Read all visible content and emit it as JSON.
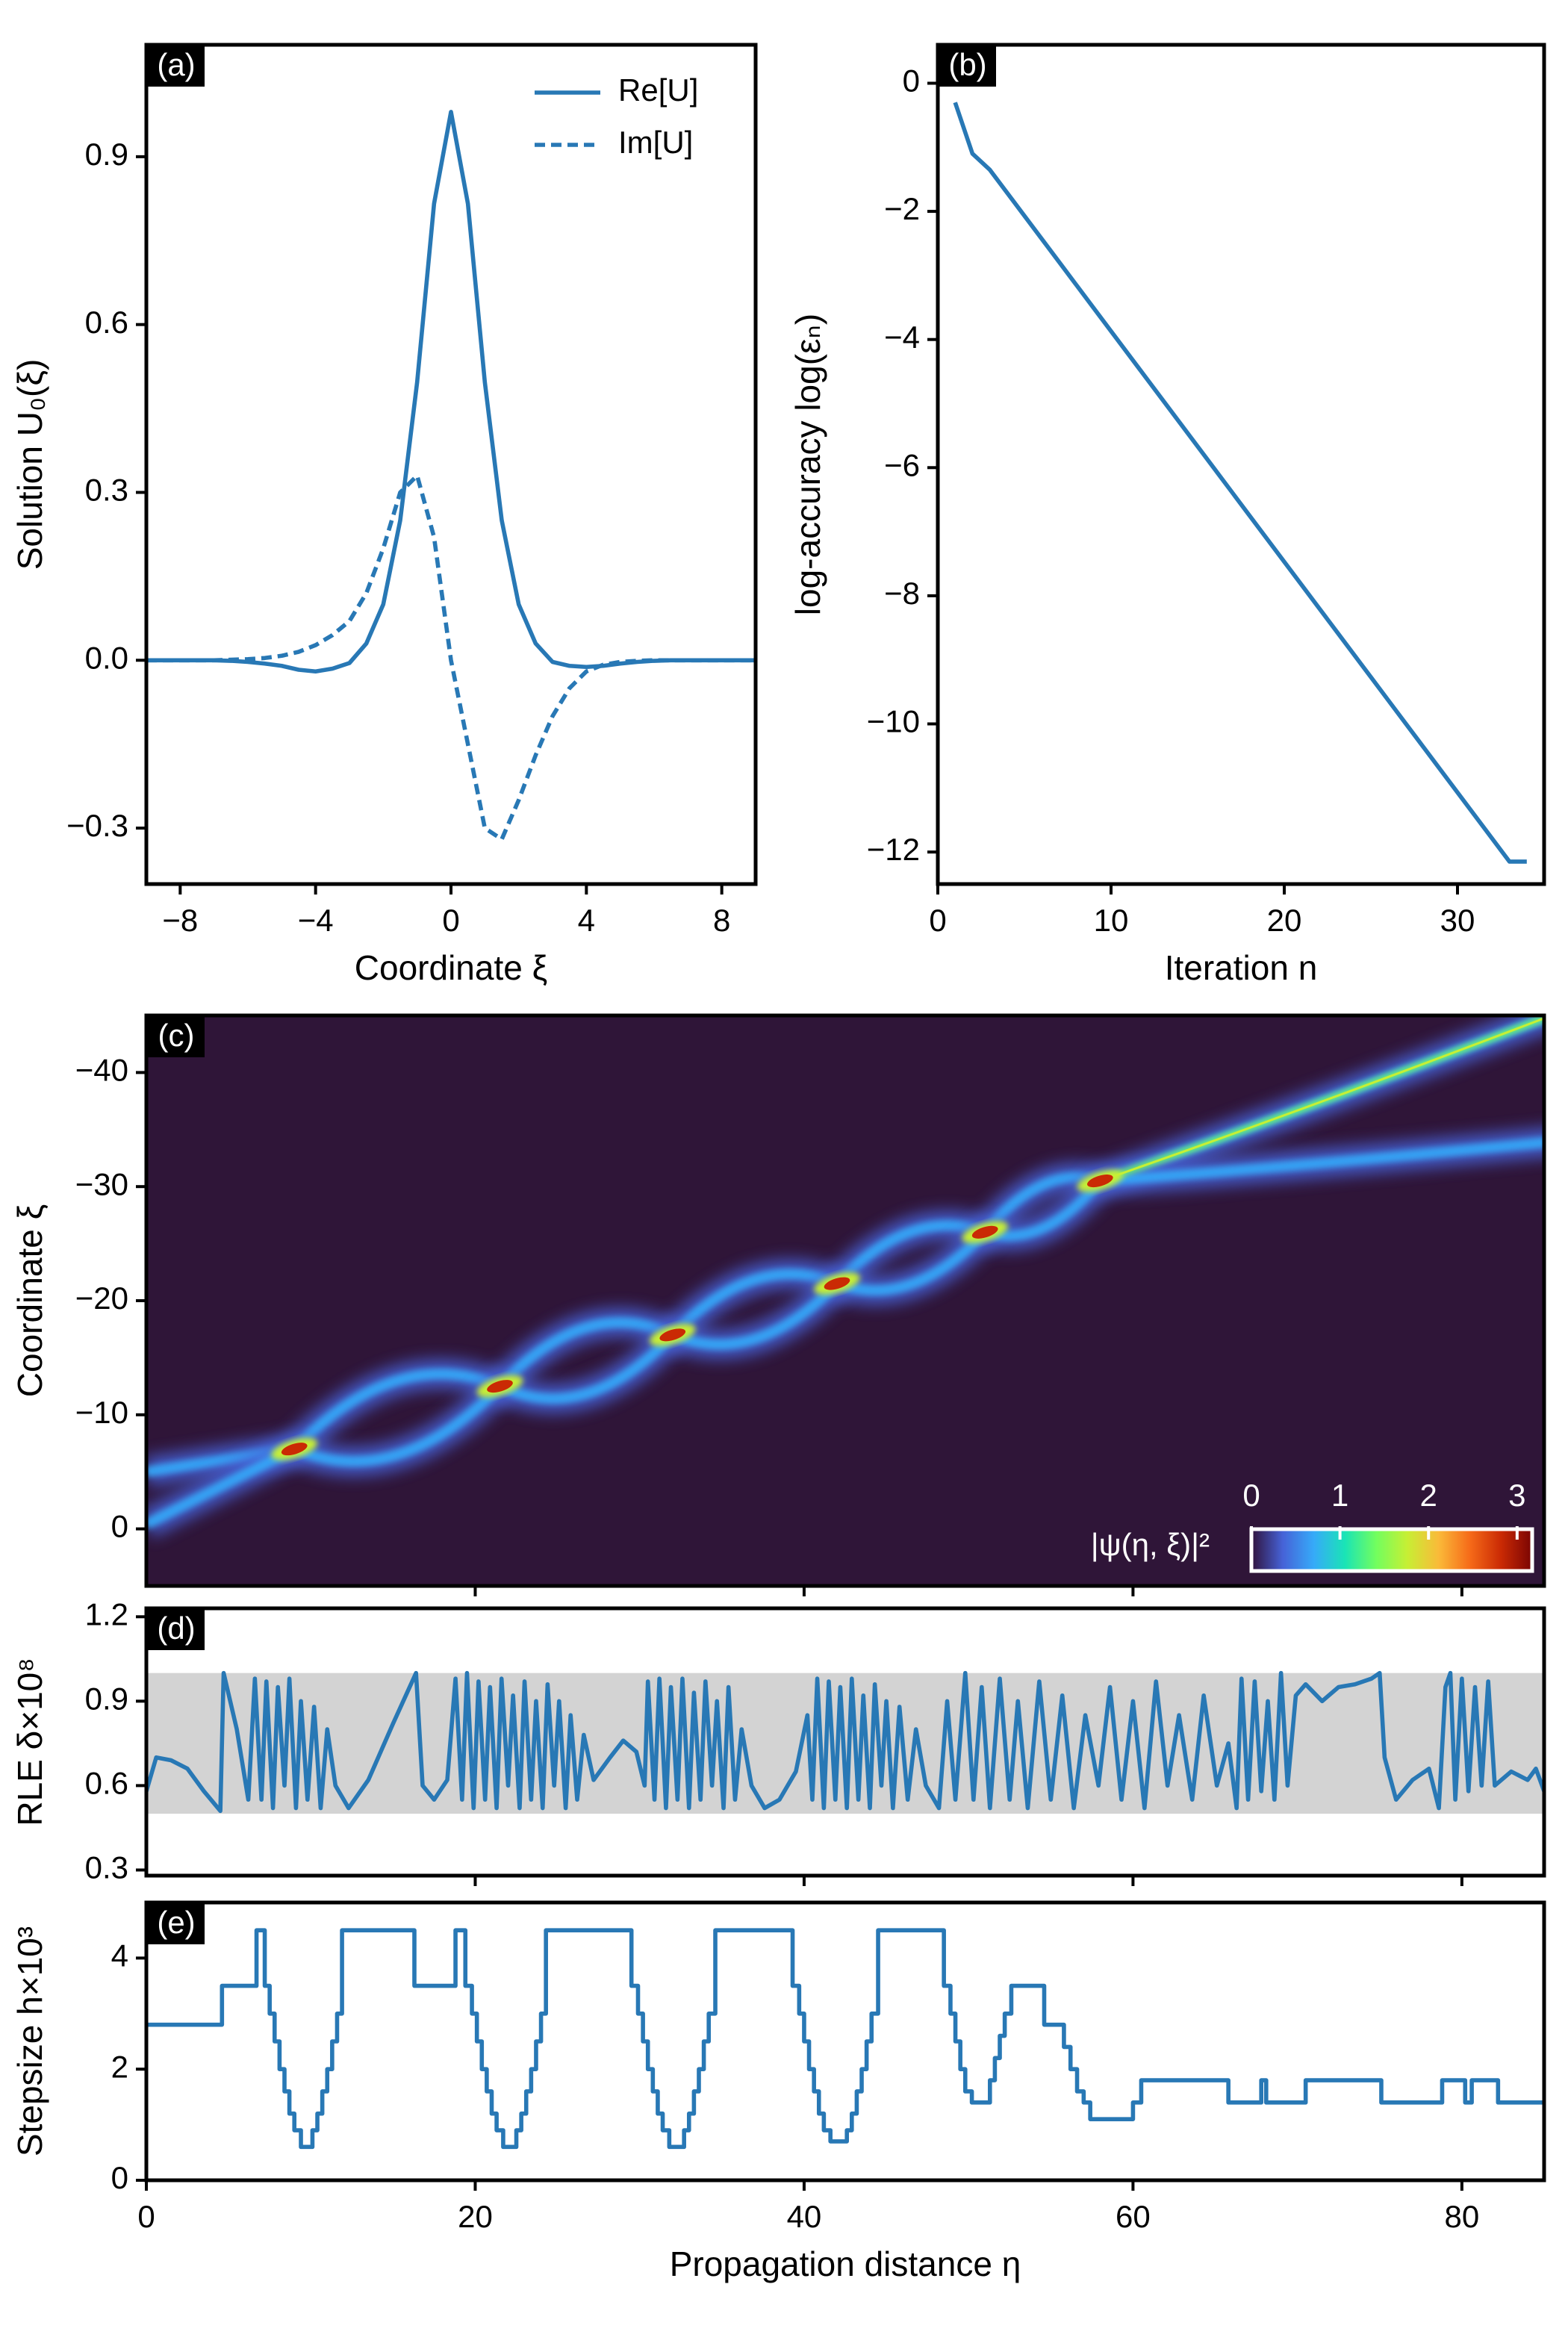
{
  "chart_data": [
    {
      "type": "line",
      "panel_label": "(a)",
      "xlabel": "Coordinate ξ",
      "ylabel": "Solution U₀(ξ)",
      "xlim": [
        -9,
        9
      ],
      "ylim": [
        -0.4,
        1.1
      ],
      "xticks": [
        {
          "value": -8,
          "label": "−8"
        },
        {
          "value": -4,
          "label": "−4"
        },
        0,
        4,
        8
      ],
      "yticks": [
        {
          "value": -0.3,
          "label": "−0.3"
        },
        {
          "value": 0,
          "label": "0.0"
        },
        0.3,
        0.6,
        0.9
      ],
      "legend": "upper right",
      "x": [
        -9,
        -8.5,
        -8,
        -7.5,
        -7,
        -6.5,
        -6,
        -5.5,
        -5,
        -4.5,
        -4,
        -3.5,
        -3,
        -2.5,
        -2,
        -1.5,
        -1,
        -0.5,
        0,
        0.5,
        1,
        1.5,
        2,
        2.5,
        3,
        3.5,
        4,
        4.5,
        5,
        5.5,
        6,
        6.5,
        7,
        7.5,
        8,
        8.5,
        9
      ],
      "series": [
        {
          "name": "Re[U]",
          "color": "#2878b5",
          "dash": "solid",
          "values": [
            0,
            0,
            0,
            0,
            0,
            -0.001,
            -0.003,
            -0.006,
            -0.01,
            -0.017,
            -0.02,
            -0.015,
            -0.005,
            0.03,
            0.1,
            0.25,
            0.497,
            0.816,
            0.98,
            0.816,
            0.497,
            0.25,
            0.1,
            0.03,
            -0.003,
            -0.01,
            -0.012,
            -0.01,
            -0.006,
            -0.003,
            -0.001,
            0,
            0,
            0,
            0,
            0,
            0
          ]
        },
        {
          "name": "Im[U]",
          "color": "#2878b5",
          "dash": "dashed",
          "values": [
            0,
            0,
            0,
            0,
            0,
            0.001,
            0.002,
            0.004,
            0.008,
            0.015,
            0.027,
            0.045,
            0.07,
            0.12,
            0.2,
            0.3,
            0.33,
            0.22,
            0,
            -0.15,
            -0.3,
            -0.32,
            -0.25,
            -0.17,
            -0.1,
            -0.05,
            -0.02,
            -0.008,
            -0.003,
            -0.001,
            0,
            0,
            0,
            0,
            0,
            0,
            0
          ]
        }
      ]
    },
    {
      "type": "line",
      "panel_label": "(b)",
      "xlabel": "Iteration n",
      "ylabel": "log-accuracy log(εₙ)",
      "xlim": [
        0,
        35
      ],
      "ylim": [
        -12.5,
        0.6
      ],
      "xticks": [
        0,
        10,
        20,
        30
      ],
      "yticks": [
        {
          "value": -12,
          "label": "−12"
        },
        {
          "value": -10,
          "label": "−10"
        },
        {
          "value": -8,
          "label": "−8"
        },
        {
          "value": -6,
          "label": "−6"
        },
        {
          "value": -4,
          "label": "−4"
        },
        {
          "value": -2,
          "label": "−2"
        },
        0
      ],
      "x": [
        1,
        2,
        3,
        4,
        5,
        6,
        7,
        8,
        9,
        10,
        11,
        12,
        13,
        14,
        15,
        16,
        17,
        18,
        19,
        20,
        21,
        22,
        23,
        24,
        25,
        26,
        27,
        28,
        29,
        30,
        31,
        32,
        33,
        34
      ],
      "series": [
        {
          "color": "#2878b5",
          "dash": "solid",
          "values": [
            -0.3,
            -1.1,
            -1.35,
            -1.71,
            -2.07,
            -2.43,
            -2.79,
            -3.15,
            -3.51,
            -3.87,
            -4.23,
            -4.59,
            -4.95,
            -5.31,
            -5.67,
            -6.03,
            -6.39,
            -6.75,
            -7.11,
            -7.47,
            -7.83,
            -8.19,
            -8.55,
            -8.91,
            -9.27,
            -9.63,
            -9.99,
            -10.35,
            -10.71,
            -11.07,
            -11.43,
            -11.79,
            -12.15,
            -12.15
          ]
        }
      ]
    },
    {
      "type": "heatmap",
      "panel_label": "(c)",
      "ylabel": "Coordinate ξ",
      "xlim": [
        0,
        85
      ],
      "ylim": [
        5,
        -45
      ],
      "xticks": [
        20,
        40,
        60,
        80
      ],
      "xtick_labels": false,
      "yticks": [
        {
          "value": -40,
          "label": "−40"
        },
        {
          "value": -30,
          "label": "−30"
        },
        {
          "value": -20,
          "label": "−20"
        },
        {
          "value": -10,
          "label": "−10"
        },
        0
      ],
      "background": "#2f1538",
      "colormap": [
        "#30123b",
        "#4662d7",
        "#36aaf9",
        "#1ae4b6",
        "#72fe5e",
        "#c7ef34",
        "#faba39",
        "#f66b19",
        "#ca2a04",
        "#7a0403"
      ],
      "colorbar": {
        "label": "|ψ(η, ξ)|²",
        "lim": [
          0,
          3.17
        ],
        "ticks": [
          0,
          1,
          2,
          3
        ]
      }
    },
    {
      "type": "line",
      "panel_label": "(d)",
      "ylabel": "RLE δ×10⁸",
      "xlim": [
        0,
        85
      ],
      "ylim": [
        0.28,
        1.23
      ],
      "xticks": [
        20,
        40,
        60,
        80
      ],
      "xtick_labels": false,
      "yticks": [
        0.3,
        0.6,
        0.9,
        1.2
      ],
      "band": [
        0.5,
        1.0
      ],
      "band_color": "#d3d3d3",
      "x": [
        0,
        0.6,
        1.5,
        2.5,
        3.5,
        4.5,
        4.7,
        5.5,
        6.2,
        6.6,
        7.0,
        7.3,
        7.7,
        8.0,
        8.4,
        8.7,
        9.1,
        9.4,
        9.8,
        10.2,
        10.6,
        11.0,
        11.5,
        12.3,
        13.5,
        15,
        16.4,
        16.8,
        17.5,
        18.3,
        18.8,
        19.2,
        19.5,
        19.9,
        20.2,
        20.6,
        20.9,
        21.3,
        21.6,
        22.0,
        22.3,
        22.7,
        23.0,
        23.4,
        23.7,
        24.1,
        24.4,
        24.8,
        25.1,
        25.5,
        25.8,
        26.2,
        26.6,
        27.2,
        28.2,
        29,
        29.8,
        30.3,
        30.5,
        30.9,
        31.2,
        31.6,
        31.9,
        32.3,
        32.6,
        33.0,
        33.3,
        33.7,
        34.0,
        34.4,
        34.7,
        35.1,
        35.4,
        35.8,
        36.2,
        36.8,
        37.6,
        38.5,
        39.5,
        40.2,
        40.5,
        40.8,
        41.2,
        41.5,
        41.9,
        42.2,
        42.6,
        42.9,
        43.3,
        43.6,
        44.0,
        44.3,
        44.7,
        45.0,
        45.4,
        45.8,
        46.3,
        46.8,
        47.4,
        48.2,
        48.7,
        49.2,
        49.8,
        50.3,
        50.8,
        51.3,
        51.9,
        52.5,
        53.0,
        53.6,
        54.3,
        55.0,
        55.7,
        56.4,
        57.1,
        57.9,
        58.6,
        59.3,
        60.0,
        60.7,
        61.4,
        62.1,
        62.8,
        63.6,
        64.3,
        65.1,
        65.8,
        66.3,
        66.6,
        67.0,
        67.4,
        67.8,
        68.2,
        68.6,
        69.0,
        69.4,
        69.9,
        70.5,
        71.5,
        72.5,
        73.5,
        74.5,
        75.0,
        75.3,
        76.0,
        77.0,
        78.0,
        78.6,
        79.0,
        79.3,
        79.6,
        80.0,
        80.4,
        80.8,
        81.2,
        81.6,
        82.0,
        83.0,
        84.0,
        84.5,
        85
      ],
      "series": [
        {
          "color": "#2878b5",
          "dash": "solid",
          "values": [
            0.58,
            0.7,
            0.69,
            0.66,
            0.58,
            0.51,
            1.0,
            0.8,
            0.55,
            0.98,
            0.55,
            0.97,
            0.52,
            0.95,
            0.6,
            0.98,
            0.52,
            0.9,
            0.55,
            0.88,
            0.52,
            0.8,
            0.6,
            0.52,
            0.62,
            0.82,
            1.0,
            0.6,
            0.55,
            0.62,
            0.98,
            0.55,
            1.0,
            0.52,
            0.97,
            0.55,
            0.95,
            0.52,
            0.98,
            0.6,
            0.92,
            0.52,
            0.97,
            0.55,
            0.9,
            0.52,
            0.96,
            0.6,
            0.9,
            0.52,
            0.85,
            0.55,
            0.78,
            0.62,
            0.7,
            0.76,
            0.72,
            0.6,
            0.97,
            0.55,
            0.98,
            0.52,
            0.95,
            0.55,
            0.98,
            0.52,
            0.93,
            0.55,
            0.97,
            0.6,
            0.9,
            0.52,
            0.95,
            0.55,
            0.8,
            0.6,
            0.52,
            0.55,
            0.65,
            0.85,
            0.55,
            0.98,
            0.52,
            0.97,
            0.55,
            0.95,
            0.52,
            0.98,
            0.55,
            0.92,
            0.52,
            0.96,
            0.6,
            0.9,
            0.52,
            0.88,
            0.55,
            0.8,
            0.6,
            0.52,
            0.9,
            0.55,
            1.0,
            0.55,
            0.95,
            0.52,
            0.98,
            0.55,
            0.9,
            0.52,
            0.97,
            0.55,
            0.92,
            0.52,
            0.85,
            0.6,
            0.95,
            0.55,
            0.9,
            0.52,
            0.97,
            0.6,
            0.85,
            0.55,
            0.92,
            0.6,
            0.75,
            0.52,
            0.98,
            0.55,
            0.97,
            0.58,
            0.9,
            0.55,
            1.0,
            0.6,
            0.92,
            0.96,
            0.9,
            0.95,
            0.96,
            0.98,
            1.0,
            0.7,
            0.55,
            0.62,
            0.66,
            0.52,
            0.95,
            1.0,
            0.55,
            0.98,
            0.58,
            0.95,
            0.6,
            0.97,
            0.6,
            0.65,
            0.62,
            0.66,
            0.58
          ]
        }
      ]
    },
    {
      "type": "step",
      "panel_label": "(e)",
      "xlabel": "Propagation distance η",
      "ylabel": "Stepsize h×10³",
      "xlim": [
        0,
        85
      ],
      "ylim": [
        0,
        5
      ],
      "xticks": [
        0,
        20,
        40,
        60,
        80
      ],
      "yticks": [
        0,
        2,
        4
      ],
      "x": [
        0,
        4.6,
        6.7,
        7.2,
        7.5,
        7.8,
        8.1,
        8.4,
        8.7,
        9.0,
        9.4,
        10.1,
        10.4,
        10.7,
        11.0,
        11.3,
        11.6,
        11.9,
        16.3,
        18.8,
        19.4,
        19.8,
        20.1,
        20.4,
        20.7,
        21.0,
        21.3,
        21.7,
        22.5,
        22.8,
        23.1,
        23.4,
        23.7,
        24.0,
        24.3,
        29.5,
        29.9,
        30.2,
        30.5,
        30.8,
        31.1,
        31.4,
        31.8,
        32.7,
        33.0,
        33.3,
        33.6,
        33.9,
        34.2,
        34.6,
        39.3,
        39.7,
        40.0,
        40.3,
        40.6,
        40.9,
        41.2,
        41.6,
        42.6,
        42.9,
        43.2,
        43.5,
        43.8,
        44.1,
        44.5,
        48.5,
        48.9,
        49.2,
        49.5,
        49.8,
        50.2,
        51.3,
        51.6,
        51.9,
        52.2,
        52.6,
        54.6,
        55.8,
        56.2,
        56.6,
        57.0,
        57.4,
        60.0,
        60.5,
        65.8,
        67.8,
        68.1,
        70.5,
        75.1,
        78.8,
        80.2,
        80.6,
        82.2,
        85
      ],
      "series": [
        {
          "color": "#2878b5",
          "dash": "solid",
          "values": [
            2.8,
            3.5,
            4.5,
            3.5,
            3.0,
            2.5,
            2.0,
            1.6,
            1.2,
            0.9,
            0.6,
            0.9,
            1.2,
            1.6,
            2.0,
            2.5,
            3.0,
            4.5,
            3.5,
            4.5,
            3.5,
            3.0,
            2.5,
            2.0,
            1.6,
            1.2,
            0.9,
            0.6,
            0.9,
            1.2,
            1.6,
            2.0,
            2.5,
            3.0,
            4.5,
            3.5,
            3.0,
            2.5,
            2.0,
            1.6,
            1.2,
            0.9,
            0.6,
            0.9,
            1.2,
            1.6,
            2.0,
            2.5,
            3.0,
            4.5,
            3.5,
            3.0,
            2.5,
            2.0,
            1.6,
            1.2,
            0.9,
            0.7,
            0.9,
            1.2,
            1.6,
            2.0,
            2.5,
            3.0,
            4.5,
            3.5,
            3.0,
            2.5,
            2.0,
            1.6,
            1.4,
            1.8,
            2.2,
            2.6,
            3.0,
            3.5,
            2.8,
            2.4,
            2.0,
            1.6,
            1.4,
            1.1,
            1.4,
            1.8,
            1.4,
            1.8,
            1.4,
            1.8,
            1.4,
            1.8,
            1.4,
            1.8,
            1.4,
            1.4
          ]
        }
      ]
    }
  ]
}
